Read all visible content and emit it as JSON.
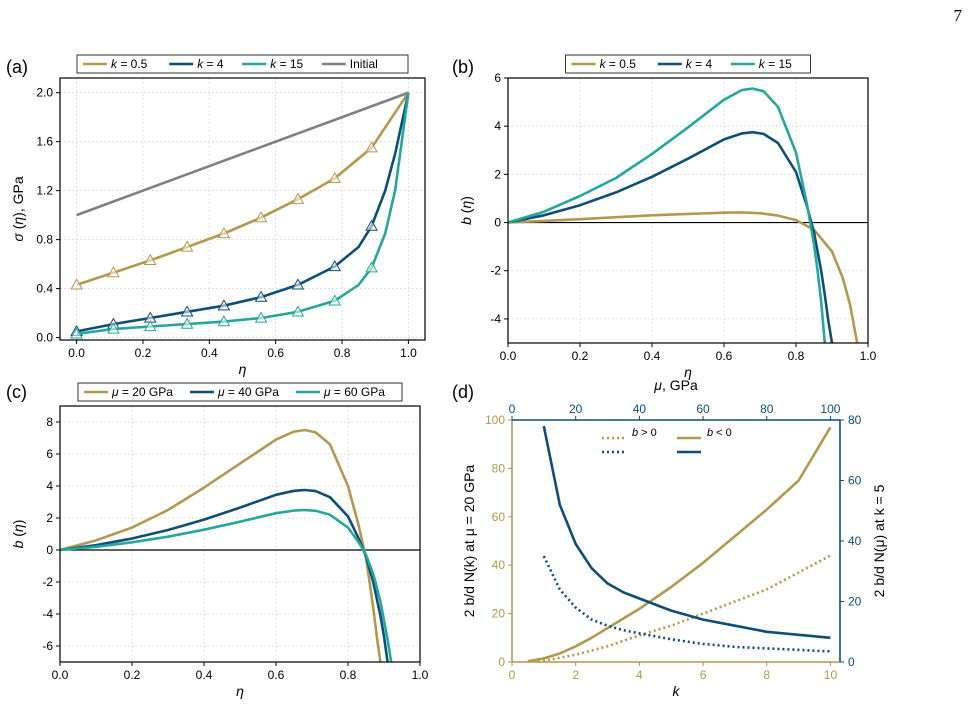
{
  "page_number": "7",
  "colors": {
    "k05": "#B3994F",
    "k4": "#0E4F78",
    "k15": "#25A89B",
    "initial": "#808080",
    "black": "#000000"
  },
  "chart_data": [
    {
      "id": "a",
      "type": "line",
      "panel_label": "(a)",
      "xlabel": "η",
      "ylabel": "σ (η), GPa",
      "xlim": [
        -0.05,
        1.05
      ],
      "ylim": [
        -0.02,
        2.12
      ],
      "xticks": [
        0.0,
        0.2,
        0.4,
        0.6,
        0.8,
        1.0
      ],
      "xtick_labels": [
        "0.0",
        "0.2",
        "0.4",
        "0.6",
        "0.8",
        "1.0"
      ],
      "yticks": [
        0.0,
        0.4,
        0.8,
        1.2,
        1.6,
        2.0
      ],
      "ytick_labels": [
        "0.0",
        "0.4",
        "0.8",
        "1.2",
        "1.6",
        "2.0"
      ],
      "grid": true,
      "legend_position": "top",
      "series": [
        {
          "name": "k = 0.5",
          "legend_label": "k = 0.5",
          "color": "#B3994F",
          "marker": "triangle",
          "x": [
            0.0,
            0.111,
            0.222,
            0.333,
            0.444,
            0.556,
            0.667,
            0.778,
            0.889,
            1.0
          ],
          "y": [
            0.43,
            0.53,
            0.63,
            0.74,
            0.85,
            0.98,
            1.13,
            1.3,
            1.55,
            2.0
          ],
          "marker_x": [
            0.0,
            0.111,
            0.222,
            0.333,
            0.444,
            0.556,
            0.667,
            0.778,
            0.889
          ]
        },
        {
          "name": "k = 4",
          "legend_label": "k = 4",
          "color": "#0E4F78",
          "marker": "triangle",
          "x": [
            0.0,
            0.111,
            0.222,
            0.333,
            0.444,
            0.556,
            0.667,
            0.778,
            0.85,
            0.889,
            0.93,
            0.96,
            1.0
          ],
          "y": [
            0.05,
            0.11,
            0.16,
            0.21,
            0.26,
            0.33,
            0.43,
            0.58,
            0.74,
            0.91,
            1.2,
            1.5,
            2.0
          ],
          "marker_x": [
            0.0,
            0.111,
            0.222,
            0.333,
            0.444,
            0.556,
            0.667,
            0.778,
            0.889
          ]
        },
        {
          "name": "k = 15",
          "legend_label": "k = 15",
          "color": "#25A89B",
          "marker": "triangle",
          "x": [
            0.0,
            0.111,
            0.222,
            0.333,
            0.444,
            0.556,
            0.667,
            0.778,
            0.85,
            0.889,
            0.93,
            0.96,
            1.0
          ],
          "y": [
            0.03,
            0.07,
            0.09,
            0.11,
            0.13,
            0.16,
            0.21,
            0.3,
            0.43,
            0.57,
            0.85,
            1.2,
            2.0
          ],
          "marker_x": [
            0.0,
            0.111,
            0.222,
            0.333,
            0.444,
            0.556,
            0.667,
            0.778,
            0.889
          ]
        },
        {
          "name": "Initial",
          "legend_label": "Initial",
          "color": "#808080",
          "marker": "none",
          "x": [
            0.0,
            1.0
          ],
          "y": [
            1.0,
            2.0
          ],
          "marker_x": []
        }
      ]
    },
    {
      "id": "b",
      "type": "line",
      "panel_label": "(b)",
      "xlabel": "η",
      "ylabel": "b (η)",
      "xlim": [
        0.0,
        1.0
      ],
      "ylim": [
        -5.0,
        6.0
      ],
      "xticks": [
        0.0,
        0.2,
        0.4,
        0.6,
        0.8,
        1.0
      ],
      "xtick_labels": [
        "0.0",
        "0.2",
        "0.4",
        "0.6",
        "0.8",
        "1.0"
      ],
      "yticks": [
        -4,
        -2,
        0,
        2,
        4,
        6
      ],
      "ytick_labels": [
        "-4",
        "-2",
        "0",
        "2",
        "4",
        "6"
      ],
      "grid": true,
      "zero_line": true,
      "legend_position": "top",
      "series": [
        {
          "name": "k = 0.5",
          "legend_label": "k = 0.5",
          "color": "#B3994F",
          "x": [
            0.0,
            0.1,
            0.2,
            0.3,
            0.4,
            0.5,
            0.6,
            0.65,
            0.7,
            0.75,
            0.8,
            0.85,
            0.9,
            0.93,
            0.95,
            0.97
          ],
          "y": [
            0.0,
            0.07,
            0.14,
            0.22,
            0.3,
            0.36,
            0.41,
            0.42,
            0.39,
            0.29,
            0.1,
            -0.3,
            -1.2,
            -2.3,
            -3.4,
            -5.0
          ]
        },
        {
          "name": "k = 4",
          "legend_label": "k = 4",
          "color": "#0E4F78",
          "x": [
            0.0,
            0.1,
            0.2,
            0.3,
            0.4,
            0.5,
            0.6,
            0.65,
            0.68,
            0.71,
            0.75,
            0.8,
            0.83,
            0.85,
            0.87,
            0.88,
            0.89,
            0.9
          ],
          "y": [
            0.0,
            0.3,
            0.72,
            1.25,
            1.9,
            2.65,
            3.45,
            3.7,
            3.75,
            3.68,
            3.3,
            2.1,
            0.7,
            -0.4,
            -2.0,
            -3.0,
            -4.1,
            -5.0
          ]
        },
        {
          "name": "k = 15",
          "legend_label": "k = 15",
          "color": "#25A89B",
          "x": [
            0.0,
            0.1,
            0.2,
            0.3,
            0.4,
            0.5,
            0.6,
            0.65,
            0.68,
            0.71,
            0.75,
            0.8,
            0.83,
            0.85,
            0.86,
            0.87,
            0.88
          ],
          "y": [
            0.0,
            0.45,
            1.1,
            1.85,
            2.85,
            3.95,
            5.1,
            5.5,
            5.56,
            5.45,
            4.8,
            2.9,
            0.8,
            -0.9,
            -2.0,
            -3.3,
            -5.0
          ]
        }
      ]
    },
    {
      "id": "c",
      "type": "line",
      "panel_label": "(c)",
      "xlabel": "η",
      "ylabel": "b (η)",
      "xlim": [
        0.0,
        1.0
      ],
      "ylim": [
        -7.0,
        9.0
      ],
      "xticks": [
        0.0,
        0.2,
        0.4,
        0.6,
        0.8,
        1.0
      ],
      "xtick_labels": [
        "0.0",
        "0.2",
        "0.4",
        "0.6",
        "0.8",
        "1.0"
      ],
      "yticks": [
        -6,
        -4,
        -2,
        0,
        2,
        4,
        6,
        8
      ],
      "ytick_labels": [
        "-6",
        "-4",
        "-2",
        "0",
        "2",
        "4",
        "6",
        "8"
      ],
      "grid": true,
      "zero_line": true,
      "legend_position": "top",
      "series": [
        {
          "name": "μ = 20 GPa",
          "legend_label": "μ = 20 GPa",
          "color": "#B3994F",
          "x": [
            0.0,
            0.1,
            0.2,
            0.3,
            0.4,
            0.5,
            0.6,
            0.65,
            0.68,
            0.71,
            0.75,
            0.8,
            0.83,
            0.85,
            0.86,
            0.87,
            0.88,
            0.89
          ],
          "y": [
            0.0,
            0.6,
            1.4,
            2.5,
            3.9,
            5.4,
            6.9,
            7.4,
            7.5,
            7.35,
            6.6,
            4.0,
            1.5,
            -0.5,
            -2.0,
            -3.6,
            -5.4,
            -7.0
          ]
        },
        {
          "name": "μ = 40 GPa",
          "legend_label": "μ = 40 GPa",
          "color": "#0E4F78",
          "x": [
            0.0,
            0.1,
            0.2,
            0.3,
            0.4,
            0.5,
            0.6,
            0.65,
            0.68,
            0.71,
            0.75,
            0.8,
            0.83,
            0.85,
            0.87,
            0.89,
            0.9,
            0.91
          ],
          "y": [
            0.0,
            0.3,
            0.72,
            1.25,
            1.9,
            2.65,
            3.45,
            3.7,
            3.75,
            3.68,
            3.3,
            2.1,
            0.7,
            -0.4,
            -2.0,
            -4.1,
            -5.4,
            -7.0
          ]
        },
        {
          "name": "μ = 60 GPa",
          "legend_label": "μ = 60 GPa",
          "color": "#25A89B",
          "x": [
            0.0,
            0.1,
            0.2,
            0.3,
            0.4,
            0.5,
            0.6,
            0.65,
            0.68,
            0.71,
            0.75,
            0.8,
            0.83,
            0.85,
            0.87,
            0.89,
            0.91,
            0.92
          ],
          "y": [
            0.0,
            0.2,
            0.48,
            0.83,
            1.27,
            1.77,
            2.3,
            2.46,
            2.5,
            2.45,
            2.2,
            1.4,
            0.47,
            -0.3,
            -1.5,
            -3.2,
            -5.6,
            -7.0
          ]
        }
      ]
    },
    {
      "id": "d",
      "type": "line",
      "panel_label": "(d)",
      "xlabel": "k",
      "ylabel": "2 b/d N(k) at μ = 20 GPa",
      "top_xlabel": "μ, GPa",
      "right_ylabel": "2 b/d N(μ) at k = 5",
      "xlim": [
        0,
        10.3
      ],
      "ylim": [
        0,
        100
      ],
      "top_xlim": [
        0,
        103
      ],
      "right_ylim": [
        0,
        80
      ],
      "xticks": [
        0,
        2,
        4,
        6,
        8,
        10
      ],
      "xtick_labels": [
        "0",
        "2",
        "4",
        "6",
        "8",
        "10"
      ],
      "yticks": [
        0,
        20,
        40,
        60,
        80,
        100
      ],
      "ytick_labels": [
        "0",
        "20",
        "40",
        "60",
        "80",
        "100"
      ],
      "top_xticks": [
        0,
        20,
        40,
        60,
        80,
        100
      ],
      "top_xtick_labels": [
        "0",
        "20",
        "40",
        "60",
        "80",
        "100"
      ],
      "right_yticks": [
        0,
        20,
        40,
        60,
        80
      ],
      "right_ytick_labels": [
        "0",
        "20",
        "40",
        "60",
        "80"
      ],
      "grid": false,
      "legend_position": "top",
      "legend": [
        {
          "label": "b > 0",
          "style": "dotted",
          "color": "#B3994F"
        },
        {
          "label": "b < 0",
          "style": "solid",
          "color": "#B3994F"
        },
        {
          "label": "",
          "style": "dotted",
          "color": "#0E4F78"
        },
        {
          "label": "",
          "style": "solid",
          "color": "#0E4F78"
        }
      ],
      "series": [
        {
          "axis": "bottom-left",
          "style": "solid",
          "color": "#B3994F",
          "label": "b < 0",
          "x": [
            0.5,
            1,
            1.5,
            2,
            2.5,
            3,
            4,
            5,
            6,
            7,
            8,
            9,
            10
          ],
          "y": [
            0.3,
            1.5,
            3.5,
            6.5,
            10,
            14,
            22,
            31,
            41,
            52,
            63,
            75,
            97
          ]
        },
        {
          "axis": "bottom-left",
          "style": "dotted",
          "color": "#B3994F",
          "label": "b > 0",
          "x": [
            0.5,
            1,
            2,
            3,
            4,
            5,
            6,
            7,
            8,
            9,
            10
          ],
          "y": [
            0.1,
            0.5,
            3,
            6.5,
            11,
            15,
            20,
            25,
            30,
            37,
            44
          ]
        },
        {
          "axis": "top-right",
          "style": "solid",
          "color": "#0E4F78",
          "label": "b < 0",
          "x": [
            10,
            15,
            20,
            25,
            30,
            35,
            40,
            50,
            60,
            70,
            80,
            90,
            100
          ],
          "y": [
            78,
            52,
            39,
            31,
            26,
            23,
            21,
            17,
            14,
            12,
            10,
            9,
            8
          ]
        },
        {
          "axis": "top-right",
          "style": "dotted",
          "color": "#0E4F78",
          "label": "b > 0",
          "x": [
            10,
            15,
            20,
            25,
            30,
            35,
            40,
            50,
            60,
            70,
            80,
            90,
            100
          ],
          "y": [
            35,
            24,
            18,
            14,
            12,
            10.5,
            9.5,
            7.5,
            6,
            5,
            4.5,
            4,
            3.5
          ]
        }
      ]
    }
  ]
}
